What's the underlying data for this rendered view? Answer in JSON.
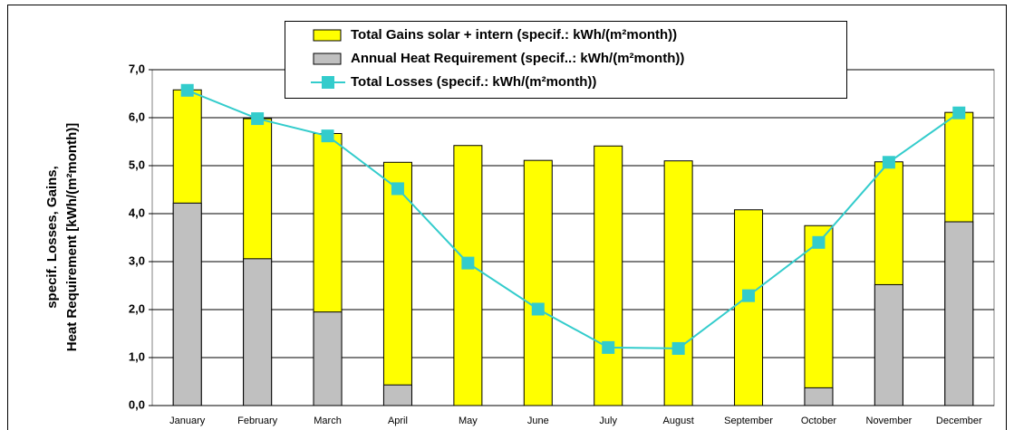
{
  "chart_data": {
    "type": "bar-line",
    "y_label": [
      "specif. Losses, Gains,",
      "Heat Requirement [kWh/(m²month)]"
    ],
    "categories": [
      "January",
      "February",
      "March",
      "April",
      "May",
      "June",
      "July",
      "August",
      "September",
      "October",
      "November",
      "December"
    ],
    "series": [
      {
        "name": "Total Gains solar + intern (specif.: kWh/(m²month))",
        "kind": "bar",
        "color": "#ffff00",
        "values": [
          6.58,
          5.98,
          5.67,
          5.07,
          5.42,
          5.11,
          5.41,
          5.1,
          4.08,
          3.75,
          5.08,
          6.11
        ]
      },
      {
        "name": "Annual Heat Requirement (specif..: kWh/(m²month))",
        "kind": "bar",
        "color": "#c0c0c0",
        "values": [
          4.22,
          3.06,
          1.95,
          0.43,
          0,
          0,
          0,
          0,
          0,
          0.37,
          2.52,
          3.83
        ]
      },
      {
        "name": "Total Losses  (specif.: kWh/(m²month))",
        "kind": "line",
        "color": "#33cccc",
        "values": [
          6.57,
          5.98,
          5.62,
          4.52,
          2.97,
          2.01,
          1.21,
          1.19,
          2.29,
          3.4,
          5.07,
          6.1
        ]
      }
    ],
    "ylim": [
      0,
      7
    ],
    "yticks": [
      {
        "value": 0,
        "label": "0,0"
      },
      {
        "value": 1,
        "label": "1,0"
      },
      {
        "value": 2,
        "label": "2,0"
      },
      {
        "value": 3,
        "label": "3,0"
      },
      {
        "value": 4,
        "label": "4,0"
      },
      {
        "value": 5,
        "label": "5,0"
      },
      {
        "value": 6,
        "label": "6,0"
      },
      {
        "value": 7,
        "label": "7,0"
      }
    ],
    "grid": true
  }
}
